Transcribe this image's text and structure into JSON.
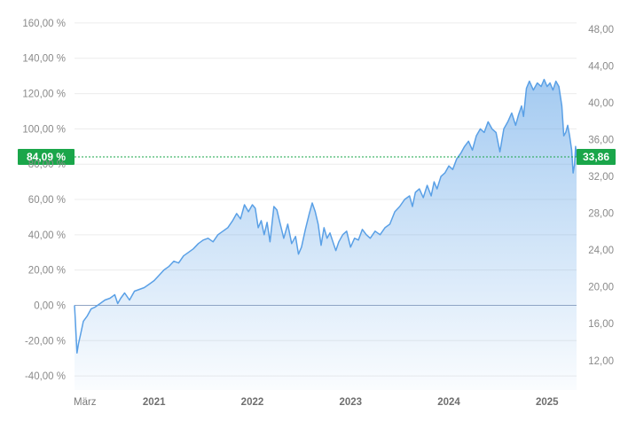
{
  "chart_data": {
    "type": "area",
    "title": "",
    "xlabel": "",
    "ylabel_left": "",
    "ylabel_right": "",
    "grid": true,
    "line_color": "#5aa0e6",
    "fill_color": "#5aa0e6",
    "zero_line_color": "#8fa4c4",
    "badge_color": "#1aa64a",
    "current_line_color": "#1aa64a",
    "x_ticks": [
      {
        "label": "März",
        "x": 2020.19,
        "bold": false
      },
      {
        "label": "2021",
        "x": 2021.0,
        "bold": true
      },
      {
        "label": "2022",
        "x": 2022.0,
        "bold": true
      },
      {
        "label": "2023",
        "x": 2023.0,
        "bold": true
      },
      {
        "label": "2024",
        "x": 2024.0,
        "bold": true
      },
      {
        "label": "2025",
        "x": 2025.0,
        "bold": true
      }
    ],
    "x_range": [
      2020.19,
      2025.3
    ],
    "y_left": {
      "range": [
        -48,
        167
      ],
      "ticks": [
        {
          "value": 160,
          "label": "160,00 %"
        },
        {
          "value": 140,
          "label": "140,00 %"
        },
        {
          "value": 120,
          "label": "120,00 %"
        },
        {
          "value": 100,
          "label": "100,00 %"
        },
        {
          "value": 80,
          "label": "80,00 %"
        },
        {
          "value": 60,
          "label": "60,00 %"
        },
        {
          "value": 40,
          "label": "40,00 %"
        },
        {
          "value": 20,
          "label": "20,00 %"
        },
        {
          "value": 0,
          "label": "0,00 %"
        },
        {
          "value": -20,
          "label": "-20,00 %"
        },
        {
          "value": -40,
          "label": "-40,00 %"
        }
      ]
    },
    "y_right": {
      "range": [
        8.8,
        50.0
      ],
      "ticks": [
        {
          "value": 48,
          "label": "48,00"
        },
        {
          "value": 44,
          "label": "44,00"
        },
        {
          "value": 40,
          "label": "40,00"
        },
        {
          "value": 36,
          "label": "36,00"
        },
        {
          "value": 32,
          "label": "32,00"
        },
        {
          "value": 28,
          "label": "28,00"
        },
        {
          "value": 24,
          "label": "24,00"
        },
        {
          "value": 20,
          "label": "20,00"
        },
        {
          "value": 16,
          "label": "16,00"
        },
        {
          "value": 12,
          "label": "12,00"
        }
      ]
    },
    "current_percent": 84.09,
    "current_percent_label": "84,09 %",
    "current_price": 33.86,
    "current_price_label": "33,86",
    "series": [
      {
        "values_percent": [
          [
            2020.19,
            0
          ],
          [
            2020.2,
            -10
          ],
          [
            2020.215,
            -27
          ],
          [
            2020.23,
            -22
          ],
          [
            2020.25,
            -17
          ],
          [
            2020.28,
            -9
          ],
          [
            2020.32,
            -6
          ],
          [
            2020.36,
            -2
          ],
          [
            2020.4,
            -1
          ],
          [
            2020.45,
            1
          ],
          [
            2020.5,
            3
          ],
          [
            2020.55,
            4
          ],
          [
            2020.6,
            6
          ],
          [
            2020.63,
            1
          ],
          [
            2020.66,
            4
          ],
          [
            2020.7,
            7
          ],
          [
            2020.75,
            3
          ],
          [
            2020.8,
            8
          ],
          [
            2020.85,
            9
          ],
          [
            2020.9,
            10
          ],
          [
            2020.95,
            12
          ],
          [
            2021.0,
            14
          ],
          [
            2021.05,
            17
          ],
          [
            2021.1,
            20
          ],
          [
            2021.15,
            22
          ],
          [
            2021.2,
            25
          ],
          [
            2021.25,
            24
          ],
          [
            2021.3,
            28
          ],
          [
            2021.35,
            30
          ],
          [
            2021.4,
            32
          ],
          [
            2021.45,
            35
          ],
          [
            2021.5,
            37
          ],
          [
            2021.55,
            38
          ],
          [
            2021.6,
            36
          ],
          [
            2021.65,
            40
          ],
          [
            2021.7,
            42
          ],
          [
            2021.75,
            44
          ],
          [
            2021.8,
            48
          ],
          [
            2021.84,
            52
          ],
          [
            2021.88,
            49
          ],
          [
            2021.92,
            57
          ],
          [
            2021.96,
            53
          ],
          [
            2022.0,
            57
          ],
          [
            2022.03,
            55
          ],
          [
            2022.06,
            44
          ],
          [
            2022.09,
            48
          ],
          [
            2022.12,
            40
          ],
          [
            2022.15,
            47
          ],
          [
            2022.18,
            36
          ],
          [
            2022.22,
            56
          ],
          [
            2022.25,
            54
          ],
          [
            2022.28,
            47
          ],
          [
            2022.32,
            38
          ],
          [
            2022.36,
            46
          ],
          [
            2022.4,
            35
          ],
          [
            2022.44,
            39
          ],
          [
            2022.47,
            29
          ],
          [
            2022.5,
            33
          ],
          [
            2022.54,
            43
          ],
          [
            2022.58,
            52
          ],
          [
            2022.61,
            58
          ],
          [
            2022.64,
            53
          ],
          [
            2022.67,
            46
          ],
          [
            2022.7,
            34
          ],
          [
            2022.73,
            44
          ],
          [
            2022.76,
            38
          ],
          [
            2022.79,
            41
          ],
          [
            2022.82,
            36
          ],
          [
            2022.85,
            31
          ],
          [
            2022.88,
            36
          ],
          [
            2022.92,
            40
          ],
          [
            2022.96,
            42
          ],
          [
            2023.0,
            33
          ],
          [
            2023.04,
            38
          ],
          [
            2023.08,
            37
          ],
          [
            2023.12,
            43
          ],
          [
            2023.16,
            40
          ],
          [
            2023.2,
            38
          ],
          [
            2023.25,
            42
          ],
          [
            2023.3,
            40
          ],
          [
            2023.35,
            44
          ],
          [
            2023.4,
            46
          ],
          [
            2023.45,
            53
          ],
          [
            2023.5,
            56
          ],
          [
            2023.55,
            60
          ],
          [
            2023.6,
            62
          ],
          [
            2023.63,
            56
          ],
          [
            2023.66,
            64
          ],
          [
            2023.7,
            66
          ],
          [
            2023.74,
            61
          ],
          [
            2023.78,
            68
          ],
          [
            2023.82,
            62
          ],
          [
            2023.85,
            70
          ],
          [
            2023.88,
            66
          ],
          [
            2023.92,
            73
          ],
          [
            2023.96,
            75
          ],
          [
            2024.0,
            79
          ],
          [
            2024.04,
            77
          ],
          [
            2024.08,
            83
          ],
          [
            2024.12,
            86
          ],
          [
            2024.16,
            90
          ],
          [
            2024.2,
            93
          ],
          [
            2024.24,
            88
          ],
          [
            2024.28,
            96
          ],
          [
            2024.32,
            100
          ],
          [
            2024.36,
            98
          ],
          [
            2024.4,
            104
          ],
          [
            2024.44,
            100
          ],
          [
            2024.48,
            98
          ],
          [
            2024.52,
            87
          ],
          [
            2024.56,
            100
          ],
          [
            2024.6,
            104
          ],
          [
            2024.64,
            109
          ],
          [
            2024.68,
            102
          ],
          [
            2024.71,
            108
          ],
          [
            2024.74,
            113
          ],
          [
            2024.76,
            107
          ],
          [
            2024.79,
            123
          ],
          [
            2024.82,
            127
          ],
          [
            2024.86,
            122
          ],
          [
            2024.9,
            126
          ],
          [
            2024.94,
            124
          ],
          [
            2024.97,
            128
          ],
          [
            2025.0,
            124
          ],
          [
            2025.03,
            126
          ],
          [
            2025.06,
            122
          ],
          [
            2025.09,
            127
          ],
          [
            2025.12,
            124
          ],
          [
            2025.15,
            113
          ],
          [
            2025.17,
            96
          ],
          [
            2025.19,
            98
          ],
          [
            2025.21,
            102
          ],
          [
            2025.23,
            96
          ],
          [
            2025.25,
            88
          ],
          [
            2025.265,
            75
          ],
          [
            2025.28,
            80
          ],
          [
            2025.29,
            90
          ],
          [
            2025.3,
            84.09
          ]
        ]
      }
    ]
  }
}
